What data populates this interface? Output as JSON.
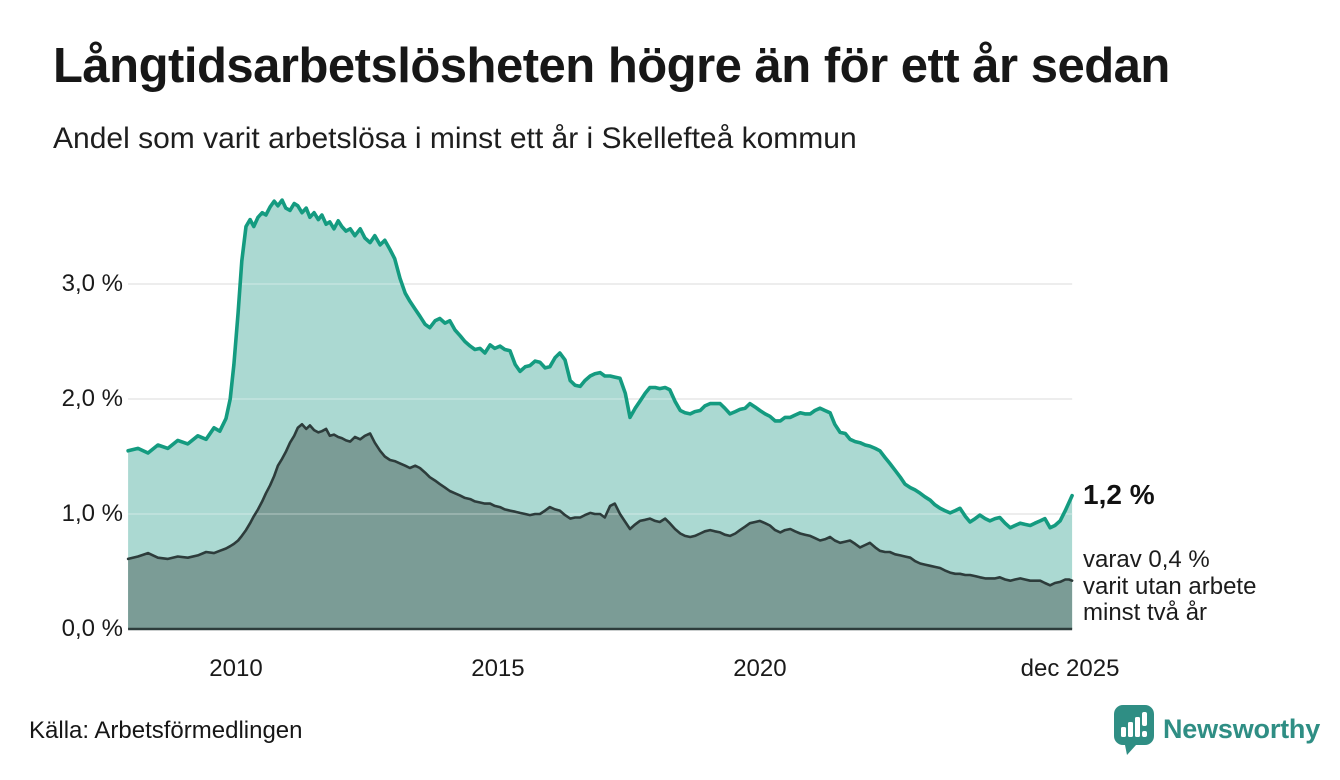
{
  "header": {
    "title": "Långtidsarbetslösheten högre än för ett år sedan",
    "subtitle": "Andel som varit arbetslösa i minst ett år i Skellefteå kommun"
  },
  "annotations": {
    "latest_value": "1,2 %",
    "secondary_lines": [
      "varav 0,4 %",
      "varit utan arbete",
      "minst två år"
    ]
  },
  "source": {
    "label": "Källa: Arbetsförmedlingen"
  },
  "branding": {
    "name": "Newsworthy",
    "logo_icon": "bar-chart-speech-bubble-icon",
    "color": "#2f8e84"
  },
  "colors": {
    "line_total": "#149b80",
    "fill_total": "#abd9d2",
    "line_two_years": "#2d3c3b",
    "fill_two_years": "#7b9c96",
    "gridline": "#e0e0e0",
    "baseline": "#2d3c3b",
    "text": "#1a1a1a"
  },
  "chart_data": {
    "type": "area",
    "title": "Långtidsarbetslösheten högre än för ett år sedan",
    "subtitle": "Andel som varit arbetslösa i minst ett år i Skellefteå kommun",
    "xlabel": "",
    "ylabel": "",
    "unit": "%",
    "grid": true,
    "legend_position": "none",
    "x_range": [
      2007.94,
      2025.96
    ],
    "y_range": [
      0,
      3.8
    ],
    "y_ticks": [
      {
        "label": "0,0 %",
        "value": 0
      },
      {
        "label": "1,0 %",
        "value": 1
      },
      {
        "label": "2,0 %",
        "value": 2
      },
      {
        "label": "3,0 %",
        "value": 3
      }
    ],
    "x_ticks": [
      {
        "label": "2010",
        "year": 2010
      },
      {
        "label": "2015",
        "year": 2015
      },
      {
        "label": "2020",
        "year": 2020
      },
      {
        "label": "dec 2025",
        "year": 2025.92
      }
    ],
    "x_years": [
      2007.94,
      2008.13,
      2008.32,
      2008.51,
      2008.7,
      2008.89,
      2009.08,
      2009.27,
      2009.43,
      2009.58,
      2009.69,
      2009.81,
      2009.89,
      2009.96,
      2010.04,
      2010.11,
      2010.19,
      2010.27,
      2010.34,
      2010.42,
      2010.5,
      2010.57,
      2010.65,
      2010.73,
      2010.8,
      2010.88,
      2010.95,
      2011.03,
      2011.11,
      2011.18,
      2011.26,
      2011.34,
      2011.41,
      2011.49,
      2011.57,
      2011.64,
      2011.72,
      2011.79,
      2011.87,
      2011.95,
      2012.02,
      2012.1,
      2012.18,
      2012.27,
      2012.37,
      2012.46,
      2012.56,
      2012.65,
      2012.75,
      2012.84,
      2012.94,
      2013.03,
      2013.13,
      2013.23,
      2013.32,
      2013.42,
      2013.51,
      2013.61,
      2013.7,
      2013.8,
      2013.89,
      2013.99,
      2014.08,
      2014.18,
      2014.28,
      2014.37,
      2014.47,
      2014.56,
      2014.66,
      2014.75,
      2014.85,
      2014.94,
      2015.04,
      2015.13,
      2015.23,
      2015.33,
      2015.42,
      2015.52,
      2015.61,
      2015.71,
      2015.8,
      2015.9,
      2015.99,
      2016.09,
      2016.18,
      2016.28,
      2016.38,
      2016.47,
      2016.57,
      2016.66,
      2016.76,
      2016.85,
      2016.95,
      2017.04,
      2017.14,
      2017.23,
      2017.33,
      2017.43,
      2017.52,
      2017.62,
      2017.71,
      2017.81,
      2017.9,
      2018.0,
      2018.09,
      2018.19,
      2018.28,
      2018.38,
      2018.48,
      2018.57,
      2018.67,
      2018.76,
      2018.86,
      2018.95,
      2019.05,
      2019.14,
      2019.24,
      2019.33,
      2019.43,
      2019.53,
      2019.62,
      2019.72,
      2019.81,
      2019.91,
      2020.0,
      2020.1,
      2020.19,
      2020.29,
      2020.39,
      2020.48,
      2020.58,
      2020.67,
      2020.77,
      2020.86,
      2020.96,
      2021.05,
      2021.15,
      2021.24,
      2021.34,
      2021.43,
      2021.53,
      2021.63,
      2021.72,
      2021.82,
      2021.91,
      2022.01,
      2022.1,
      2022.2,
      2022.29,
      2022.39,
      2022.48,
      2022.58,
      2022.68,
      2022.77,
      2022.87,
      2022.96,
      2023.06,
      2023.15,
      2023.25,
      2023.34,
      2023.44,
      2023.53,
      2023.63,
      2023.73,
      2023.82,
      2023.92,
      2024.01,
      2024.11,
      2024.2,
      2024.3,
      2024.39,
      2024.49,
      2024.58,
      2024.68,
      2024.78,
      2024.87,
      2024.97,
      2025.06,
      2025.16,
      2025.25,
      2025.35,
      2025.44,
      2025.54,
      2025.63,
      2025.73,
      2025.83,
      2025.9,
      2025.96
    ],
    "series": [
      {
        "name": "Arbetslösa minst ett år",
        "final_label": "1,2 %",
        "line_color": "#149b80",
        "fill_color": "#abd9d2",
        "values": [
          1.55,
          1.57,
          1.53,
          1.6,
          1.57,
          1.64,
          1.61,
          1.68,
          1.65,
          1.75,
          1.72,
          1.83,
          2.0,
          2.3,
          2.75,
          3.2,
          3.5,
          3.56,
          3.5,
          3.58,
          3.62,
          3.6,
          3.67,
          3.72,
          3.68,
          3.73,
          3.66,
          3.64,
          3.7,
          3.68,
          3.62,
          3.66,
          3.58,
          3.62,
          3.56,
          3.6,
          3.52,
          3.54,
          3.48,
          3.55,
          3.5,
          3.46,
          3.48,
          3.42,
          3.48,
          3.4,
          3.36,
          3.42,
          3.34,
          3.38,
          3.3,
          3.22,
          3.05,
          2.92,
          2.85,
          2.78,
          2.72,
          2.65,
          2.62,
          2.68,
          2.7,
          2.66,
          2.68,
          2.6,
          2.55,
          2.5,
          2.46,
          2.43,
          2.44,
          2.4,
          2.47,
          2.44,
          2.46,
          2.43,
          2.42,
          2.3,
          2.24,
          2.28,
          2.29,
          2.33,
          2.32,
          2.27,
          2.28,
          2.36,
          2.4,
          2.34,
          2.16,
          2.12,
          2.11,
          2.16,
          2.2,
          2.22,
          2.23,
          2.2,
          2.2,
          2.19,
          2.18,
          2.05,
          1.84,
          1.92,
          1.98,
          2.05,
          2.1,
          2.1,
          2.09,
          2.1,
          2.08,
          1.98,
          1.9,
          1.88,
          1.87,
          1.89,
          1.9,
          1.94,
          1.96,
          1.96,
          1.96,
          1.92,
          1.87,
          1.89,
          1.91,
          1.92,
          1.96,
          1.93,
          1.9,
          1.87,
          1.85,
          1.81,
          1.81,
          1.84,
          1.84,
          1.86,
          1.88,
          1.87,
          1.87,
          1.9,
          1.92,
          1.9,
          1.88,
          1.78,
          1.71,
          1.7,
          1.65,
          1.63,
          1.62,
          1.6,
          1.59,
          1.57,
          1.55,
          1.49,
          1.44,
          1.38,
          1.32,
          1.26,
          1.23,
          1.21,
          1.18,
          1.15,
          1.12,
          1.08,
          1.05,
          1.03,
          1.01,
          1.03,
          1.05,
          0.98,
          0.93,
          0.96,
          0.99,
          0.96,
          0.94,
          0.96,
          0.97,
          0.92,
          0.88,
          0.9,
          0.92,
          0.91,
          0.9,
          0.92,
          0.94,
          0.96,
          0.88,
          0.9,
          0.94,
          1.03,
          1.1,
          1.16
        ]
      },
      {
        "name": "varav utan arbete minst två år",
        "final_label": "0,4 %",
        "line_color": "#2d3c3b",
        "fill_color": "#7b9c96",
        "values": [
          0.61,
          0.63,
          0.66,
          0.62,
          0.61,
          0.63,
          0.62,
          0.64,
          0.67,
          0.66,
          0.68,
          0.7,
          0.72,
          0.74,
          0.77,
          0.81,
          0.86,
          0.92,
          0.98,
          1.04,
          1.11,
          1.18,
          1.25,
          1.33,
          1.42,
          1.48,
          1.54,
          1.62,
          1.68,
          1.75,
          1.78,
          1.74,
          1.77,
          1.73,
          1.71,
          1.72,
          1.74,
          1.68,
          1.69,
          1.67,
          1.66,
          1.64,
          1.63,
          1.67,
          1.65,
          1.68,
          1.7,
          1.62,
          1.55,
          1.5,
          1.47,
          1.46,
          1.44,
          1.42,
          1.4,
          1.42,
          1.4,
          1.36,
          1.32,
          1.29,
          1.26,
          1.23,
          1.2,
          1.18,
          1.16,
          1.14,
          1.13,
          1.11,
          1.1,
          1.09,
          1.09,
          1.07,
          1.06,
          1.04,
          1.03,
          1.02,
          1.01,
          1.0,
          0.99,
          1.0,
          1.0,
          1.03,
          1.06,
          1.04,
          1.03,
          0.99,
          0.96,
          0.97,
          0.97,
          0.99,
          1.01,
          1.0,
          1.0,
          0.97,
          1.07,
          1.09,
          1.0,
          0.93,
          0.87,
          0.91,
          0.94,
          0.95,
          0.96,
          0.94,
          0.93,
          0.96,
          0.92,
          0.87,
          0.83,
          0.81,
          0.8,
          0.81,
          0.83,
          0.85,
          0.86,
          0.85,
          0.84,
          0.82,
          0.81,
          0.83,
          0.86,
          0.89,
          0.92,
          0.93,
          0.94,
          0.92,
          0.9,
          0.86,
          0.84,
          0.86,
          0.87,
          0.85,
          0.83,
          0.82,
          0.81,
          0.79,
          0.77,
          0.78,
          0.8,
          0.77,
          0.75,
          0.76,
          0.77,
          0.74,
          0.71,
          0.73,
          0.75,
          0.71,
          0.68,
          0.67,
          0.67,
          0.65,
          0.64,
          0.63,
          0.62,
          0.59,
          0.57,
          0.56,
          0.55,
          0.54,
          0.53,
          0.51,
          0.49,
          0.48,
          0.48,
          0.47,
          0.47,
          0.46,
          0.45,
          0.44,
          0.44,
          0.44,
          0.45,
          0.43,
          0.42,
          0.43,
          0.44,
          0.43,
          0.42,
          0.42,
          0.42,
          0.4,
          0.38,
          0.4,
          0.41,
          0.43,
          0.43,
          0.42
        ]
      }
    ]
  }
}
